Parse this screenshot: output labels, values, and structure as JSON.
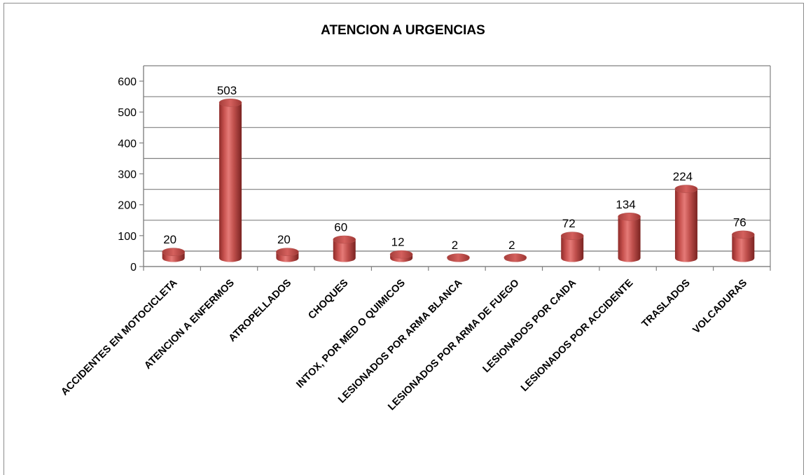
{
  "chart_data": {
    "type": "bar",
    "title": "ATENCION A URGENCIAS",
    "categories": [
      "ACCIDENTES EN MOTOCICLETA",
      "ATENCION A ENFERMOS",
      "ATROPELLADOS",
      "CHOQUES",
      "INTOX, POR MED O QUIMICOS",
      "LESIONADOS POR ARMA BLANCA",
      "LESIONADOS POR ARMA DE FUEGO",
      "LESIONADOS POR CAIDA",
      "LESIONADOS POR ACCIDENTE",
      "TRASLADOS",
      "VOLCADURAS"
    ],
    "values": [
      20,
      503,
      20,
      60,
      12,
      2,
      2,
      72,
      134,
      224,
      76
    ],
    "ylim": [
      0,
      600
    ],
    "yticks": [
      0,
      100,
      200,
      300,
      400,
      500,
      600
    ],
    "grid": true,
    "bar_color": "#c0504d",
    "xlabel": "",
    "ylabel": ""
  }
}
